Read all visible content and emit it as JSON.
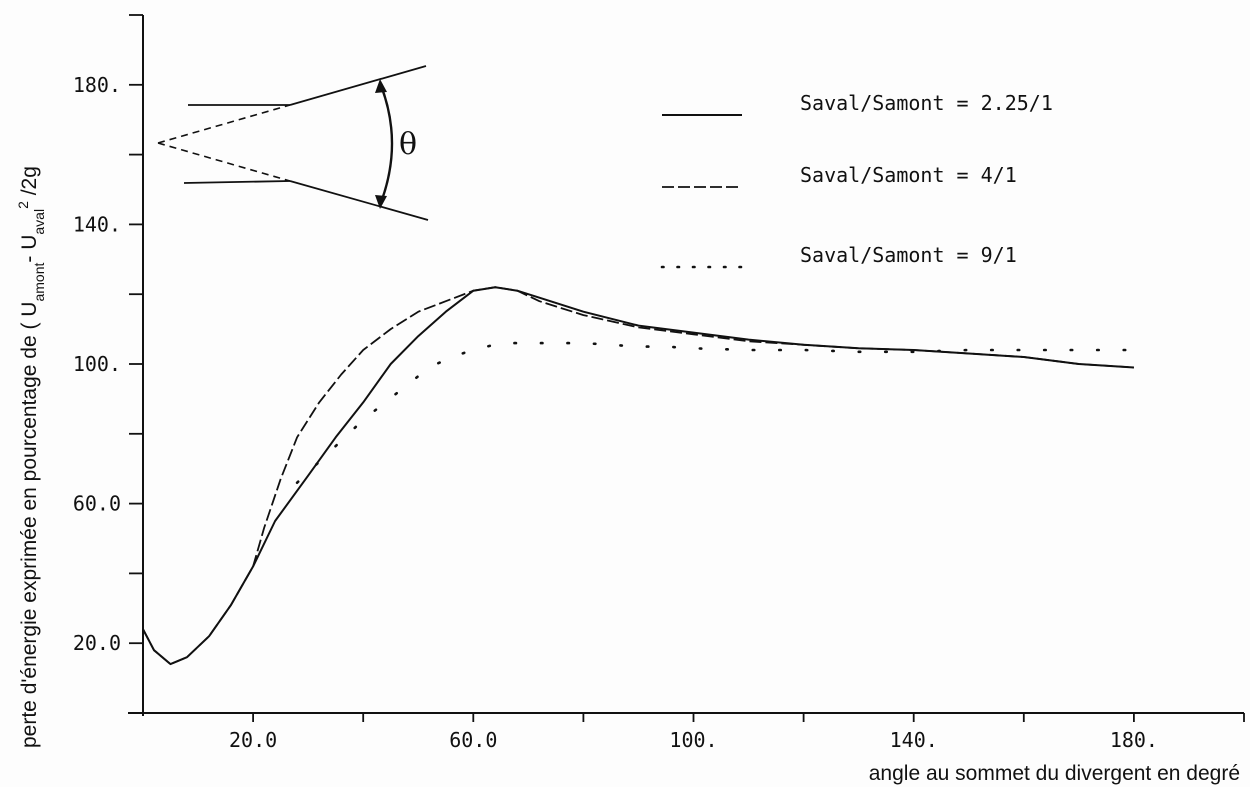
{
  "chart_data": {
    "type": "line",
    "title": "",
    "xlabel": "angle au sommet du divergent en degré",
    "ylabel": {
      "prefix": "perte d'énergie exprimée en pourcentage de ( U",
      "sub1": "amont",
      "mid": "- U",
      "sub2": "aval",
      "sup": "2",
      "suffix": " /2g"
    },
    "xlim": [
      0,
      200
    ],
    "ylim": [
      0,
      200
    ],
    "x_ticks": [
      0,
      20,
      40,
      60,
      80,
      100,
      120,
      140,
      160,
      180,
      200
    ],
    "x_tick_labels": [
      {
        "value": 20,
        "label": "20.0"
      },
      {
        "value": 60,
        "label": "60.0"
      },
      {
        "value": 100,
        "label": "100."
      },
      {
        "value": 140,
        "label": "140."
      },
      {
        "value": 180,
        "label": "180."
      }
    ],
    "y_ticks": [
      0,
      20,
      40,
      60,
      80,
      100,
      120,
      140,
      160,
      180,
      200
    ],
    "y_tick_labels": [
      {
        "value": 20,
        "label": "20.0"
      },
      {
        "value": 60,
        "label": "60.0"
      },
      {
        "value": 100,
        "label": "100."
      },
      {
        "value": 140,
        "label": "140."
      },
      {
        "value": 180,
        "label": "180."
      }
    ],
    "grid": false,
    "legend_position": "top-right",
    "series": [
      {
        "name": "Saval/Samont = 2.25/1",
        "style": "solid",
        "points": [
          [
            0,
            24
          ],
          [
            2,
            18
          ],
          [
            5,
            14
          ],
          [
            8,
            16
          ],
          [
            12,
            22
          ],
          [
            16,
            31
          ],
          [
            20,
            42
          ],
          [
            24,
            55
          ],
          [
            30,
            68
          ],
          [
            35,
            79
          ],
          [
            40,
            89
          ],
          [
            45,
            100
          ],
          [
            50,
            108
          ],
          [
            55,
            115
          ],
          [
            60,
            121
          ],
          [
            64,
            122
          ],
          [
            68,
            121
          ],
          [
            72,
            119
          ],
          [
            80,
            115
          ],
          [
            90,
            111
          ],
          [
            100,
            109
          ],
          [
            110,
            107
          ],
          [
            120,
            105.5
          ],
          [
            130,
            104.5
          ],
          [
            140,
            104
          ],
          [
            150,
            103
          ],
          [
            160,
            102
          ],
          [
            170,
            100
          ],
          [
            180,
            99
          ]
        ]
      },
      {
        "name": "Saval/Samont = 4/1",
        "style": "dashed",
        "points": [
          [
            0,
            24
          ],
          [
            2,
            18
          ],
          [
            5,
            14
          ],
          [
            8,
            16
          ],
          [
            12,
            22
          ],
          [
            16,
            31
          ],
          [
            20,
            42
          ],
          [
            22,
            53
          ],
          [
            25,
            67
          ],
          [
            28,
            79
          ],
          [
            32,
            89
          ],
          [
            36,
            97
          ],
          [
            40,
            104
          ],
          [
            45,
            110
          ],
          [
            50,
            115
          ],
          [
            55,
            118
          ],
          [
            60,
            121
          ],
          [
            64,
            122
          ],
          [
            68,
            121
          ],
          [
            72,
            118
          ],
          [
            80,
            114
          ],
          [
            90,
            110.5
          ],
          [
            100,
            108.5
          ],
          [
            110,
            106.5
          ],
          [
            120,
            105.5
          ],
          [
            130,
            104.5
          ],
          [
            140,
            104
          ],
          [
            150,
            103
          ],
          [
            160,
            102
          ],
          [
            170,
            100
          ],
          [
            180,
            99
          ]
        ]
      },
      {
        "name": "Saval/Samont = 9/1",
        "style": "dotted",
        "points": [
          [
            28,
            66
          ],
          [
            32,
            72
          ],
          [
            36,
            78
          ],
          [
            40,
            84
          ],
          [
            44,
            89
          ],
          [
            48,
            94
          ],
          [
            52,
            99
          ],
          [
            56,
            102
          ],
          [
            60,
            104
          ],
          [
            65,
            106
          ],
          [
            70,
            106
          ],
          [
            75,
            106
          ],
          [
            80,
            106
          ],
          [
            85,
            105.5
          ],
          [
            90,
            105
          ],
          [
            95,
            105
          ],
          [
            100,
            104.5
          ],
          [
            110,
            104
          ],
          [
            120,
            104
          ],
          [
            130,
            103.5
          ],
          [
            140,
            103.5
          ],
          [
            150,
            104
          ],
          [
            160,
            104
          ],
          [
            170,
            104
          ],
          [
            180,
            104
          ]
        ]
      }
    ],
    "inset_diagram": {
      "label": "θ"
    }
  }
}
